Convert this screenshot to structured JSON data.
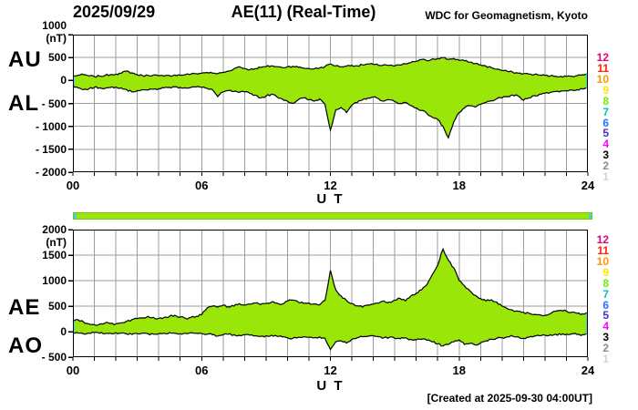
{
  "header": {
    "date": "2025/09/29",
    "title": "AE(11) (Real-Time)",
    "credit": "WDC for Geomagnetism, Kyoto"
  },
  "footer": {
    "created": "[Created at 2025-09-30 04:00UT]"
  },
  "colors": {
    "fill": "#9be609",
    "grid": "#9c9c9c",
    "axis": "#000000",
    "edge_marker": "#3fd6e0",
    "bar_fill": "#9be609",
    "bar_border": "#79c400",
    "bar_cap": "#3fd6e0"
  },
  "stations": {
    "labels": [
      "12",
      "11",
      "10",
      "9",
      "8",
      "7",
      "6",
      "5",
      "4",
      "3",
      "2",
      "1"
    ],
    "colors": [
      "#e6007e",
      "#ff1e00",
      "#ff9500",
      "#ffe100",
      "#7ce600",
      "#00c3c3",
      "#1e78ff",
      "#4632c8",
      "#ff00ff",
      "#000000",
      "#8c8c8c",
      "#d2d2d2"
    ]
  },
  "chart_data": [
    {
      "type": "area",
      "title": "AU / AL auroral electrojet indices",
      "panel_labels": [
        "AU",
        "AL"
      ],
      "unit": "(nT)",
      "xlabel": "U T",
      "x_ticks": [
        "00",
        "06",
        "12",
        "18",
        "24"
      ],
      "xlim": [
        0,
        24
      ],
      "ylim": [
        -2000,
        1000
      ],
      "y_ticks": [
        1000,
        500,
        0,
        -500,
        -1000,
        -1500,
        -2000
      ],
      "x_step_hours": 0.25,
      "noise_nt": 40,
      "grid": true,
      "legend_position": "right-station-numbers",
      "series": [
        {
          "name": "AU",
          "values": [
            90,
            115,
            125,
            100,
            85,
            95,
            110,
            130,
            140,
            155,
            205,
            165,
            125,
            105,
            110,
            120,
            100,
            95,
            105,
            120,
            115,
            130,
            140,
            150,
            160,
            175,
            160,
            150,
            175,
            205,
            255,
            300,
            260,
            240,
            260,
            285,
            300,
            320,
            300,
            280,
            300,
            310,
            290,
            270,
            260,
            255,
            275,
            305,
            360,
            320,
            300,
            315,
            330,
            320,
            340,
            360,
            350,
            330,
            345,
            330,
            315,
            335,
            360,
            390,
            420,
            455,
            430,
            470,
            480,
            500,
            460,
            480,
            440,
            430,
            400,
            370,
            340,
            310,
            280,
            250,
            220,
            200,
            180,
            160,
            150,
            140,
            130,
            120,
            110,
            100,
            95,
            90,
            88,
            95,
            105,
            125,
            160
          ]
        },
        {
          "name": "AL",
          "values": [
            -120,
            -160,
            -200,
            -180,
            -150,
            -160,
            -170,
            -150,
            -140,
            -160,
            -200,
            -250,
            -220,
            -200,
            -210,
            -190,
            -180,
            -160,
            -150,
            -140,
            -150,
            -160,
            -150,
            -140,
            -150,
            -170,
            -200,
            -350,
            -250,
            -220,
            -240,
            -260,
            -250,
            -280,
            -320,
            -380,
            -340,
            -300,
            -350,
            -400,
            -450,
            -500,
            -420,
            -380,
            -420,
            -450,
            -400,
            -520,
            -1080,
            -640,
            -590,
            -700,
            -540,
            -480,
            -420,
            -380,
            -360,
            -400,
            -450,
            -420,
            -460,
            -500,
            -480,
            -550,
            -600,
            -650,
            -720,
            -800,
            -850,
            -1000,
            -1250,
            -900,
            -700,
            -600,
            -550,
            -580,
            -520,
            -480,
            -440,
            -400,
            -380,
            -350,
            -320,
            -340,
            -430,
            -380,
            -330,
            -300,
            -280,
            -260,
            -240,
            -230,
            -220,
            -210,
            -200,
            -185,
            -170
          ]
        }
      ]
    },
    {
      "type": "area",
      "title": "AE / AO auroral electrojet indices",
      "panel_labels": [
        "AE",
        "AO"
      ],
      "unit": "(nT)",
      "xlabel": "U T",
      "x_ticks": [
        "00",
        "06",
        "12",
        "18",
        "24"
      ],
      "xlim": [
        0,
        24
      ],
      "ylim": [
        -500,
        2000
      ],
      "y_ticks": [
        2000,
        1500,
        1000,
        500,
        0,
        -500
      ],
      "x_step_hours": 0.25,
      "noise_nt": 40,
      "grid": true,
      "legend_position": "right-station-numbers",
      "series": [
        {
          "name": "AE",
          "values": [
            200,
            230,
            185,
            150,
            135,
            150,
            170,
            160,
            150,
            175,
            205,
            235,
            255,
            270,
            300,
            280,
            260,
            280,
            300,
            320,
            285,
            260,
            280,
            300,
            330,
            460,
            500,
            480,
            520,
            485,
            500,
            550,
            520,
            540,
            560,
            530,
            550,
            580,
            560,
            540,
            600,
            620,
            580,
            555,
            560,
            545,
            525,
            610,
            1200,
            820,
            700,
            610,
            550,
            505,
            480,
            520,
            540,
            560,
            600,
            580,
            620,
            650,
            600,
            700,
            750,
            820,
            920,
            1120,
            1300,
            1620,
            1400,
            1250,
            1000,
            900,
            800,
            710,
            650,
            600,
            625,
            580,
            500,
            450,
            420,
            400,
            380,
            360,
            340,
            330,
            320,
            350,
            400,
            420,
            400,
            380,
            360,
            350,
            365
          ]
        },
        {
          "name": "AO",
          "values": [
            -20,
            -30,
            -45,
            -30,
            -20,
            -30,
            -40,
            -30,
            -20,
            -30,
            -45,
            -55,
            -40,
            -30,
            -40,
            -50,
            -40,
            -30,
            -20,
            -30,
            -40,
            -30,
            -20,
            -30,
            -40,
            -50,
            -60,
            -85,
            -60,
            -50,
            -60,
            -70,
            -60,
            -70,
            -80,
            -95,
            -80,
            -70,
            -90,
            -100,
            -120,
            -130,
            -110,
            -100,
            -110,
            -120,
            -100,
            -130,
            -350,
            -200,
            -180,
            -225,
            -150,
            -120,
            -100,
            -90,
            -80,
            -100,
            -120,
            -110,
            -130,
            -140,
            -120,
            -150,
            -160,
            -150,
            -170,
            -200,
            -240,
            -280,
            -250,
            -200,
            -160,
            -250,
            -230,
            -260,
            -220,
            -180,
            -150,
            -130,
            -120,
            -100,
            -90,
            -100,
            -130,
            -110,
            -90,
            -80,
            -70,
            -60,
            -50,
            -60,
            -50,
            -45,
            -55,
            -60,
            -50
          ]
        }
      ]
    }
  ]
}
